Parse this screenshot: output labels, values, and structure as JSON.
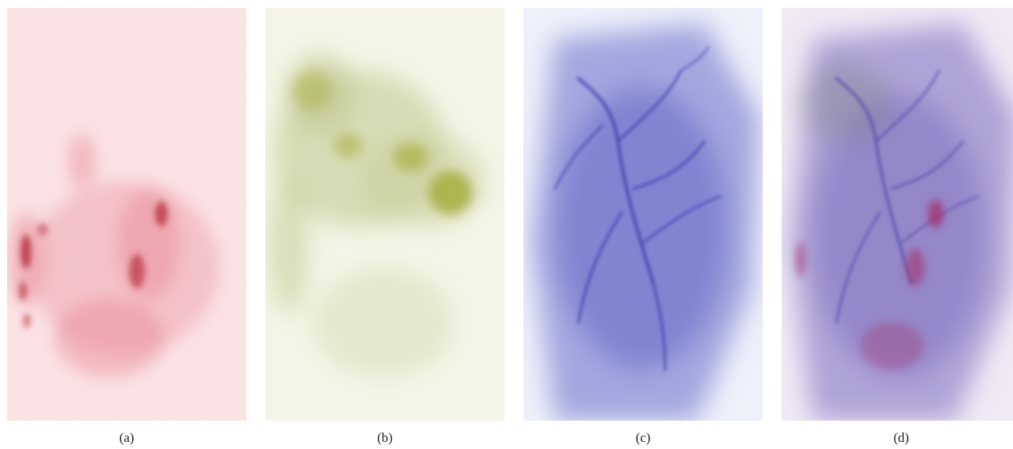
{
  "figure": {
    "panels": [
      {
        "label": "(a)",
        "tint": "#d94a5c",
        "background": "#fbe6e8"
      },
      {
        "label": "(b)",
        "tint": "#8c9a2e",
        "background": "#f3f4e4"
      },
      {
        "label": "(c)",
        "tint": "#3b3fb4",
        "background": "#eceefa"
      },
      {
        "label": "(d)",
        "tint": "#7a3f9a",
        "background": "#eee8f4"
      }
    ]
  }
}
